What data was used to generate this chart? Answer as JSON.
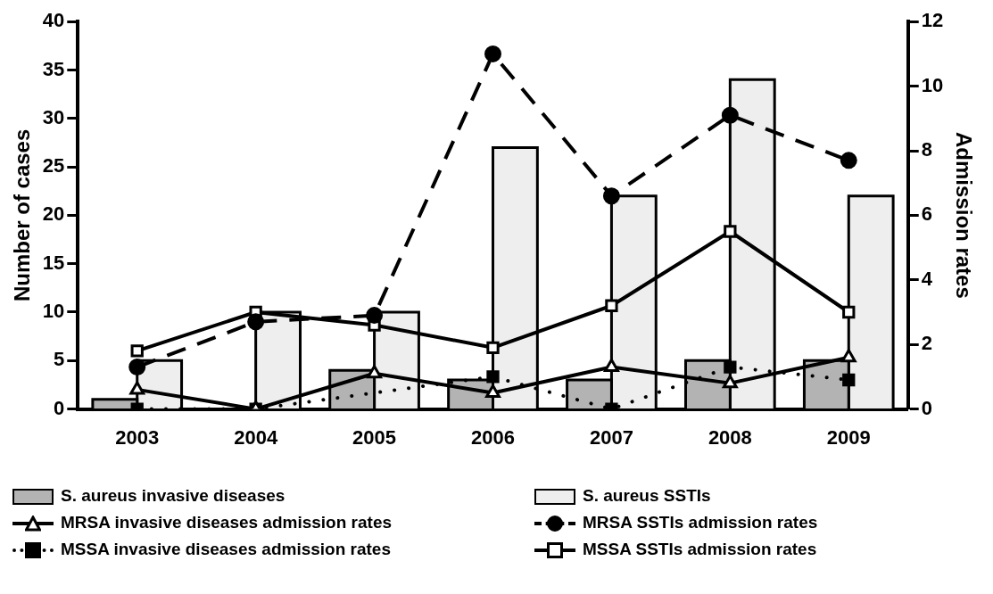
{
  "chart_data": {
    "type": "bar",
    "ylabel": "Number of cases",
    "y2label": "Admission rates",
    "categories": [
      "2003",
      "2004",
      "2005",
      "2006",
      "2007",
      "2008",
      "2009"
    ],
    "series": [
      {
        "name": "S. aureus invasive diseases",
        "color": "#b3b3b3",
        "values": [
          1,
          0,
          4,
          3,
          3,
          5,
          5
        ]
      },
      {
        "name": "S. aureus SSTIs",
        "color": "#eeeeee",
        "values": [
          5,
          10,
          10,
          27,
          22,
          34,
          22
        ]
      },
      {
        "name": "MRSA invasive diseases admission rates",
        "type": "line",
        "axis": "y2",
        "color": "#000000",
        "marker": "triangle",
        "line_style": "solid",
        "values": [
          0.6,
          0,
          1.1,
          0.5,
          1.3,
          0.8,
          1.6
        ]
      },
      {
        "name": "MRSA SSTIs admission rates",
        "type": "line",
        "axis": "y2",
        "color": "#000000",
        "marker": "circle",
        "line_style": "dashed",
        "values": [
          1.3,
          2.7,
          2.9,
          11,
          6.6,
          9.1,
          7.7
        ]
      },
      {
        "name": "MSSA invasive diseases admission rates",
        "type": "line",
        "axis": "y2",
        "color": "#000000",
        "marker": "square",
        "line_style": "dotted",
        "values": [
          0,
          0,
          null,
          1.0,
          0,
          1.3,
          0.9
        ]
      },
      {
        "name": "MSSA SSTIs admission rates",
        "type": "line",
        "axis": "y2",
        "color": "#000000",
        "marker": "square",
        "line_style": "solid",
        "values": [
          1.8,
          3.0,
          2.6,
          1.9,
          3.2,
          5.5,
          3.0
        ]
      }
    ],
    "ylim": [
      0,
      40
    ],
    "yticks": [
      0,
      5,
      10,
      15,
      20,
      25,
      30,
      35,
      40
    ],
    "y2lim": [
      0,
      12
    ],
    "y2ticks": [
      0,
      2,
      4,
      6,
      8,
      10,
      12
    ],
    "grid": false,
    "legend": "bottom"
  }
}
